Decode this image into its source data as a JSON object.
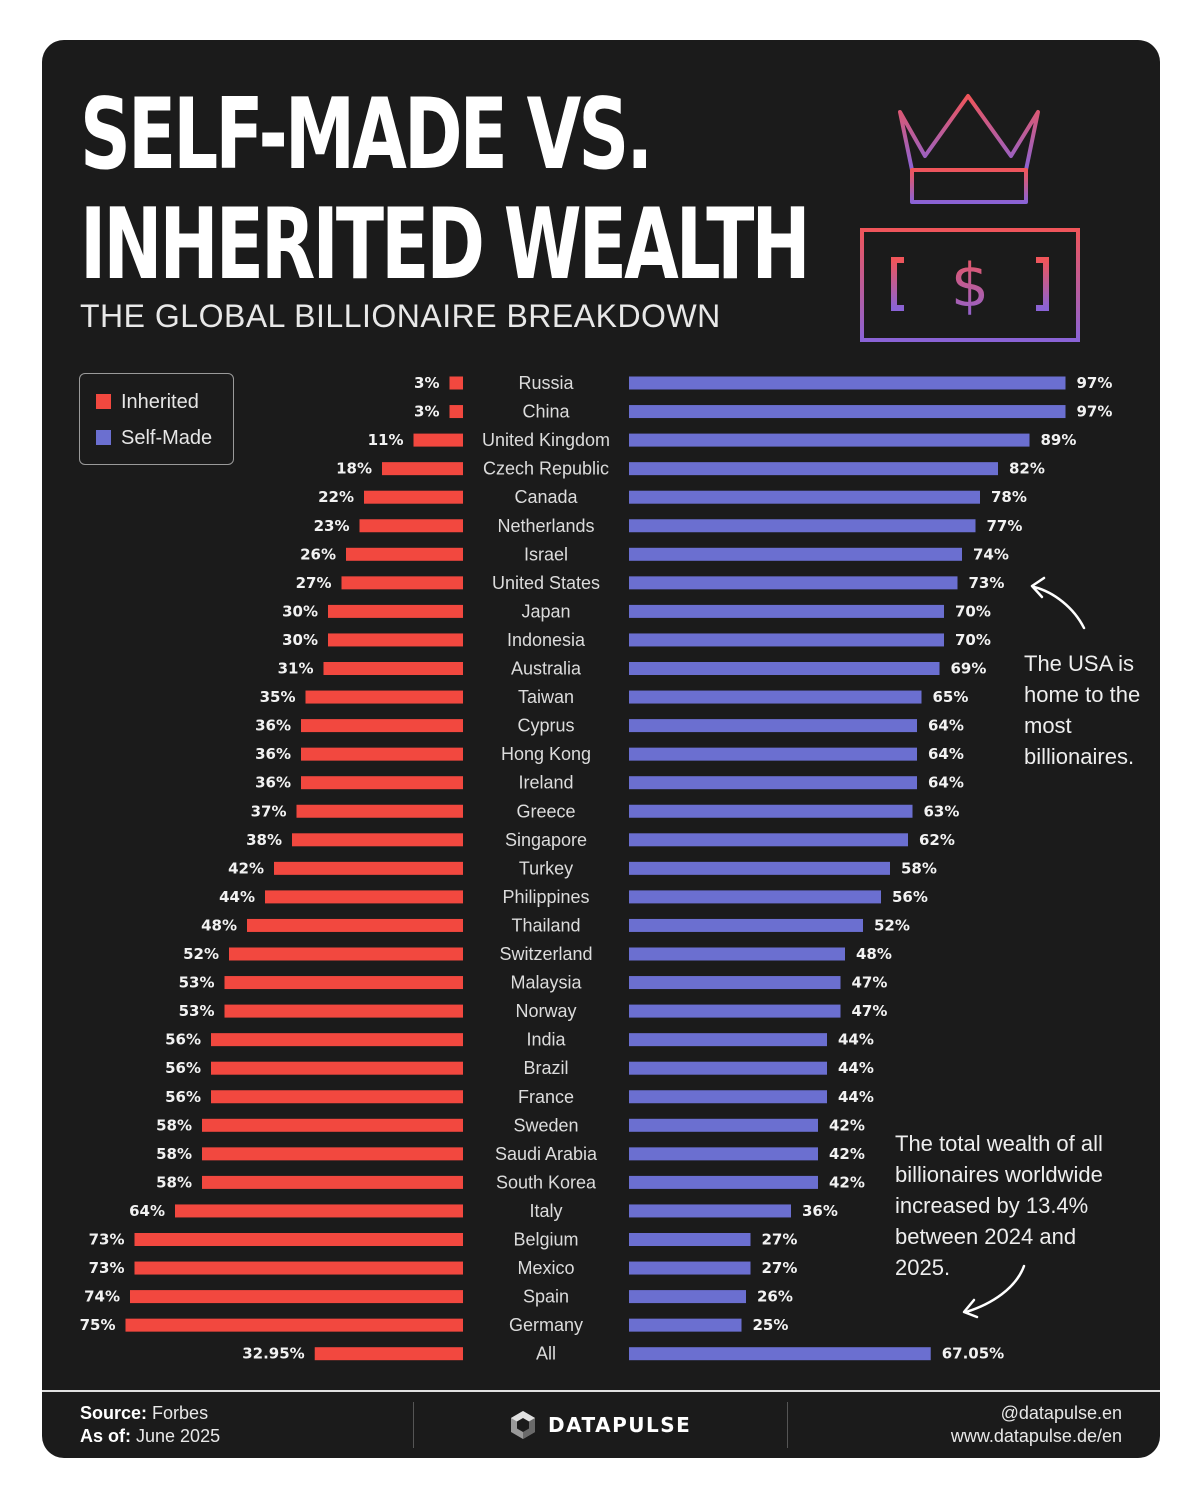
{
  "header": {
    "title_line1": "SELF-MADE VS.",
    "title_line2": "INHERITED WEALTH",
    "subtitle": "THE GLOBAL BILLIONAIRE BREAKDOWN"
  },
  "icons": [
    "crown-icon",
    "dollar-banknote-icon"
  ],
  "legend": {
    "items": [
      {
        "label": "Inherited",
        "color": "#f2483f"
      },
      {
        "label": "Self-Made",
        "color": "#6b6fd0"
      }
    ]
  },
  "annotations": {
    "usa": "The USA is home to the most billionaires.",
    "growth": "The total wealth of all billionaires worldwide increased by 13.4% between 2024 and 2025."
  },
  "chart_data": {
    "type": "bar",
    "orientation": "horizontal-diverging",
    "title": "SELF-MADE VS. INHERITED WEALTH",
    "subtitle": "THE GLOBAL BILLIONAIRE BREAKDOWN",
    "categories": [
      "Russia",
      "China",
      "United Kingdom",
      "Czech Republic",
      "Canada",
      "Netherlands",
      "Israel",
      "United States",
      "Japan",
      "Indonesia",
      "Australia",
      "Taiwan",
      "Cyprus",
      "Hong Kong",
      "Ireland",
      "Greece",
      "Singapore",
      "Turkey",
      "Philippines",
      "Thailand",
      "Switzerland",
      "Malaysia",
      "Norway",
      "India",
      "Brazil",
      "France",
      "Sweden",
      "Saudi Arabia",
      "South Korea",
      "Italy",
      "Belgium",
      "Mexico",
      "Spain",
      "Germany",
      "All"
    ],
    "series": [
      {
        "name": "Inherited",
        "color": "#f2483f",
        "values": [
          3,
          3,
          11,
          18,
          22,
          23,
          26,
          27,
          30,
          30,
          31,
          35,
          36,
          36,
          36,
          37,
          38,
          42,
          44,
          48,
          52,
          53,
          53,
          56,
          56,
          56,
          58,
          58,
          58,
          64,
          73,
          73,
          74,
          75,
          32.95
        ],
        "labels": [
          "3%",
          "3%",
          "11%",
          "18%",
          "22%",
          "23%",
          "26%",
          "27%",
          "30%",
          "30%",
          "31%",
          "35%",
          "36%",
          "36%",
          "36%",
          "37%",
          "38%",
          "42%",
          "44%",
          "48%",
          "52%",
          "53%",
          "53%",
          "56%",
          "56%",
          "56%",
          "58%",
          "58%",
          "58%",
          "64%",
          "73%",
          "73%",
          "74%",
          "75%",
          "32.95%"
        ]
      },
      {
        "name": "Self-Made",
        "color": "#6b6fd0",
        "values": [
          97,
          97,
          89,
          82,
          78,
          77,
          74,
          73,
          70,
          70,
          69,
          65,
          64,
          64,
          64,
          63,
          62,
          58,
          56,
          52,
          48,
          47,
          47,
          44,
          44,
          44,
          42,
          42,
          42,
          36,
          27,
          27,
          26,
          25,
          67.05
        ],
        "labels": [
          "97%",
          "97%",
          "89%",
          "82%",
          "78%",
          "77%",
          "74%",
          "73%",
          "70%",
          "70%",
          "69%",
          "65%",
          "64%",
          "64%",
          "64%",
          "63%",
          "62%",
          "58%",
          "56%",
          "52%",
          "48%",
          "47%",
          "47%",
          "44%",
          "44%",
          "44%",
          "42%",
          "42%",
          "42%",
          "36%",
          "27%",
          "27%",
          "26%",
          "25%",
          "67.05%"
        ]
      }
    ],
    "xlim": [
      0,
      100
    ],
    "unit": "%",
    "grid": false,
    "legend_position": "top-left"
  },
  "footer": {
    "source_label": "Source:",
    "source": "Forbes",
    "asof_label": "As of:",
    "asof": "June 2025",
    "brand": "DATAPULSE",
    "handle": "@datapulse.en",
    "website": "www.datapulse.de/en"
  }
}
